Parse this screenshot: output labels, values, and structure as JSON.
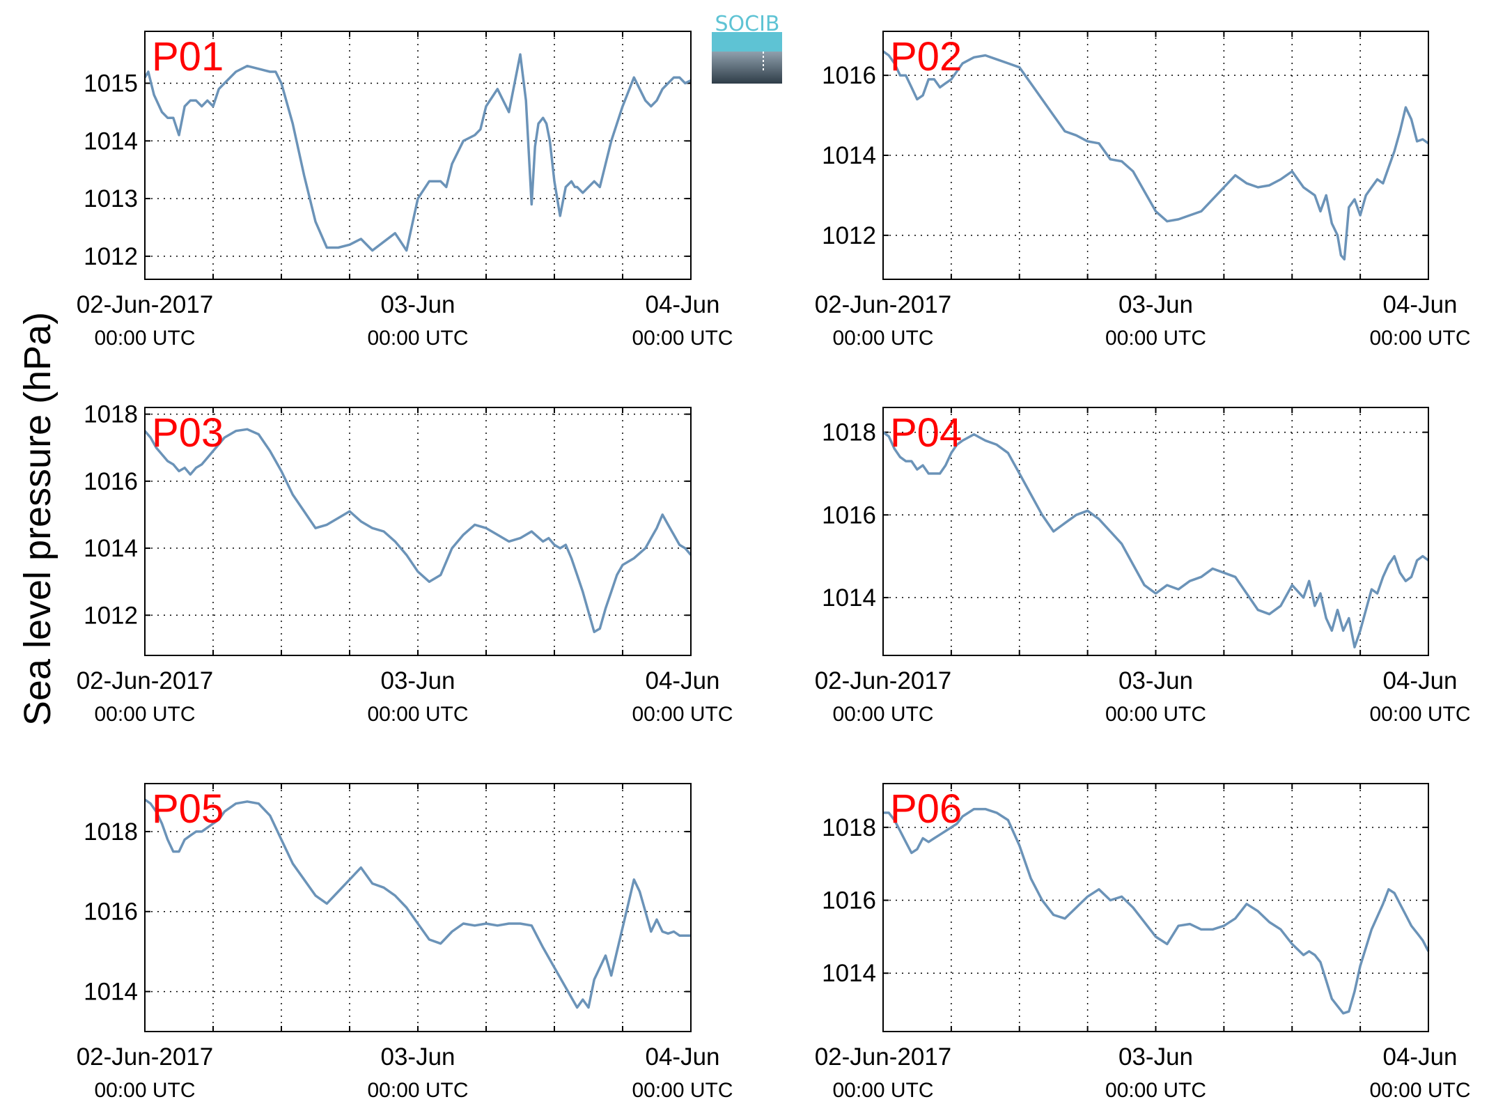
{
  "figure": {
    "ylabel": "Sea level pressure (hPa)",
    "logo_text": "SOCIB",
    "line_color": "#6b93b8",
    "label_color": "#ff0000"
  },
  "chart_data": [
    {
      "type": "line",
      "label": "P01",
      "x_unit": "hours since 02-Jun-2017 00:00 UTC",
      "xlim": [
        0,
        48
      ],
      "ylim": [
        1011.6,
        1015.9
      ],
      "yticks": [
        1012,
        1013,
        1014,
        1015
      ],
      "xticks": [
        {
          "x": 0,
          "line1": "02-Jun-2017",
          "line2": "00:00 UTC"
        },
        {
          "x": 24,
          "line1": "03-Jun",
          "line2": "00:00 UTC"
        },
        {
          "x": 48,
          "line1": "04-Jun",
          "line2": "00:00 UTC"
        }
      ],
      "grid": true,
      "x": [
        0,
        0.3,
        0.8,
        1.5,
        2,
        2.5,
        3,
        3.5,
        4,
        4.5,
        5,
        5.5,
        6,
        6.5,
        7,
        8,
        9,
        10,
        11,
        11.5,
        12,
        13,
        14,
        15,
        16,
        17,
        18,
        19,
        20,
        21,
        22,
        22.5,
        23,
        24,
        25,
        26,
        26.5,
        27,
        28,
        29,
        29.5,
        30,
        31,
        32,
        33,
        33.5,
        34,
        34.3,
        34.6,
        35,
        35.3,
        35.6,
        36,
        36.5,
        37,
        37.5,
        37.8,
        38,
        38.5,
        39,
        39.5,
        40,
        40.5,
        41,
        42,
        43,
        44,
        44.5,
        45,
        45.5,
        46,
        46.5,
        47,
        47.5,
        48
      ],
      "values": [
        1015.1,
        1015.2,
        1014.8,
        1014.5,
        1014.4,
        1014.4,
        1014.1,
        1014.6,
        1014.7,
        1014.7,
        1014.6,
        1014.7,
        1014.6,
        1014.9,
        1015.0,
        1015.2,
        1015.3,
        1015.25,
        1015.2,
        1015.2,
        1015.0,
        1014.3,
        1013.4,
        1012.6,
        1012.15,
        1012.15,
        1012.2,
        1012.3,
        1012.1,
        1012.25,
        1012.4,
        1012.25,
        1012.1,
        1013.0,
        1013.3,
        1013.3,
        1013.2,
        1013.6,
        1014.0,
        1014.1,
        1014.2,
        1014.6,
        1014.9,
        1014.5,
        1015.5,
        1014.7,
        1012.9,
        1013.9,
        1014.3,
        1014.4,
        1014.3,
        1014.0,
        1013.3,
        1012.7,
        1013.2,
        1013.3,
        1013.2,
        1013.2,
        1013.1,
        1013.2,
        1013.3,
        1013.2,
        1013.6,
        1014.0,
        1014.6,
        1015.1,
        1014.7,
        1014.6,
        1014.7,
        1014.9,
        1015.0,
        1015.1,
        1015.1,
        1015.0,
        1015.05
      ]
    },
    {
      "type": "line",
      "label": "P02",
      "x_unit": "hours since 02-Jun-2017 00:00 UTC",
      "xlim": [
        0,
        48
      ],
      "ylim": [
        1010.9,
        1017.1
      ],
      "yticks": [
        1012,
        1014,
        1016
      ],
      "xticks": [
        {
          "x": 0,
          "line1": "02-Jun-2017",
          "line2": "00:00 UTC"
        },
        {
          "x": 24,
          "line1": "03-Jun",
          "line2": "00:00 UTC"
        },
        {
          "x": 48,
          "line1": "04-Jun",
          "line2": "00:00 UTC"
        }
      ],
      "grid": true,
      "x": [
        0,
        0.5,
        1,
        1.5,
        2,
        2.5,
        3,
        3.5,
        4,
        4.5,
        5,
        5.5,
        6,
        6.5,
        7,
        8,
        9,
        10,
        11,
        12,
        13,
        14,
        15,
        16,
        17,
        18,
        19,
        20,
        21,
        22,
        23,
        24,
        25,
        26,
        27,
        28,
        29,
        30,
        31,
        32,
        33,
        34,
        35,
        36,
        37,
        38,
        38.5,
        39,
        39.5,
        40,
        40.3,
        40.6,
        41,
        41.5,
        42,
        42.5,
        43,
        43.5,
        44,
        44.5,
        45,
        45.5,
        46,
        46.5,
        47,
        47.5,
        48
      ],
      "values": [
        1016.6,
        1016.5,
        1016.3,
        1016.0,
        1016.0,
        1015.7,
        1015.4,
        1015.5,
        1015.9,
        1015.9,
        1015.7,
        1015.8,
        1015.9,
        1016.1,
        1016.3,
        1016.45,
        1016.5,
        1016.4,
        1016.3,
        1016.2,
        1015.8,
        1015.4,
        1015.0,
        1014.6,
        1014.5,
        1014.35,
        1014.3,
        1013.9,
        1013.85,
        1013.6,
        1013.1,
        1012.6,
        1012.35,
        1012.4,
        1012.5,
        1012.6,
        1012.9,
        1013.2,
        1013.5,
        1013.3,
        1013.2,
        1013.25,
        1013.4,
        1013.6,
        1013.2,
        1013.0,
        1012.6,
        1013.0,
        1012.3,
        1012.0,
        1011.5,
        1011.4,
        1012.7,
        1012.9,
        1012.5,
        1013.0,
        1013.2,
        1013.4,
        1013.3,
        1013.7,
        1014.1,
        1014.6,
        1015.2,
        1014.9,
        1014.35,
        1014.4,
        1014.3
      ]
    },
    {
      "type": "line",
      "label": "P03",
      "x_unit": "hours since 02-Jun-2017 00:00 UTC",
      "xlim": [
        0,
        48
      ],
      "ylim": [
        1010.8,
        1018.2
      ],
      "yticks": [
        1012,
        1014,
        1016,
        1018
      ],
      "xticks": [
        {
          "x": 0,
          "line1": "02-Jun-2017",
          "line2": "00:00 UTC"
        },
        {
          "x": 24,
          "line1": "03-Jun",
          "line2": "00:00 UTC"
        },
        {
          "x": 48,
          "line1": "04-Jun",
          "line2": "00:00 UTC"
        }
      ],
      "grid": true,
      "x": [
        0,
        0.5,
        1,
        1.5,
        2,
        2.5,
        3,
        3.5,
        4,
        4.5,
        5,
        5.5,
        6,
        6.5,
        7,
        8,
        9,
        10,
        11,
        12,
        13,
        14,
        15,
        16,
        17,
        18,
        19,
        20,
        21,
        22,
        23,
        24,
        25,
        26,
        27,
        28,
        29,
        30,
        31,
        32,
        33,
        34,
        35,
        35.5,
        36,
        36.5,
        37,
        37.5,
        38,
        38.5,
        39,
        39.5,
        40,
        40.5,
        41,
        41.5,
        42,
        43,
        44,
        44.5,
        45,
        45.5,
        46,
        46.5,
        47,
        47.5,
        48
      ],
      "values": [
        1017.5,
        1017.3,
        1017.0,
        1016.8,
        1016.6,
        1016.5,
        1016.3,
        1016.4,
        1016.2,
        1016.4,
        1016.5,
        1016.7,
        1016.9,
        1017.1,
        1017.3,
        1017.5,
        1017.55,
        1017.4,
        1016.9,
        1016.3,
        1015.6,
        1015.1,
        1014.6,
        1014.7,
        1014.9,
        1015.1,
        1014.8,
        1014.6,
        1014.5,
        1014.2,
        1013.8,
        1013.3,
        1013.0,
        1013.2,
        1014.0,
        1014.4,
        1014.7,
        1014.6,
        1014.4,
        1014.2,
        1014.3,
        1014.5,
        1014.2,
        1014.3,
        1014.1,
        1014.0,
        1014.1,
        1013.7,
        1013.2,
        1012.7,
        1012.1,
        1011.5,
        1011.6,
        1012.2,
        1012.7,
        1013.2,
        1013.5,
        1013.7,
        1014.0,
        1014.3,
        1014.6,
        1015.0,
        1014.7,
        1014.4,
        1014.1,
        1014.0,
        1013.8
      ]
    },
    {
      "type": "line",
      "label": "P04",
      "x_unit": "hours since 02-Jun-2017 00:00 UTC",
      "xlim": [
        0,
        48
      ],
      "ylim": [
        1012.6,
        1018.6
      ],
      "yticks": [
        1014,
        1016,
        1018
      ],
      "xticks": [
        {
          "x": 0,
          "line1": "02-Jun-2017",
          "line2": "00:00 UTC"
        },
        {
          "x": 24,
          "line1": "03-Jun",
          "line2": "00:00 UTC"
        },
        {
          "x": 48,
          "line1": "04-Jun",
          "line2": "00:00 UTC"
        }
      ],
      "grid": true,
      "x": [
        0,
        0.5,
        1,
        1.5,
        2,
        2.5,
        3,
        3.5,
        4,
        4.5,
        5,
        5.5,
        6,
        6.5,
        7,
        8,
        9,
        10,
        11,
        12,
        13,
        14,
        15,
        16,
        17,
        18,
        19,
        20,
        21,
        22,
        23,
        24,
        25,
        26,
        27,
        28,
        29,
        30,
        31,
        32,
        33,
        34,
        35,
        36,
        37,
        37.5,
        38,
        38.5,
        39,
        39.5,
        40,
        40.5,
        41,
        41.5,
        42,
        42.3,
        42.6,
        43,
        43.5,
        44,
        44.5,
        45,
        45.5,
        46,
        46.5,
        47,
        47.5,
        48
      ],
      "values": [
        1018.0,
        1017.9,
        1017.6,
        1017.4,
        1017.3,
        1017.3,
        1017.1,
        1017.2,
        1017.0,
        1017.0,
        1017.0,
        1017.2,
        1017.5,
        1017.7,
        1017.8,
        1017.95,
        1017.8,
        1017.7,
        1017.5,
        1017.0,
        1016.5,
        1016.0,
        1015.6,
        1015.8,
        1016.0,
        1016.1,
        1015.9,
        1015.6,
        1015.3,
        1014.8,
        1014.3,
        1014.1,
        1014.3,
        1014.2,
        1014.4,
        1014.5,
        1014.7,
        1014.6,
        1014.5,
        1014.1,
        1013.7,
        1013.6,
        1013.8,
        1014.3,
        1014.0,
        1014.4,
        1013.8,
        1014.1,
        1013.5,
        1013.2,
        1013.7,
        1013.2,
        1013.5,
        1012.8,
        1013.2,
        1013.5,
        1013.8,
        1014.2,
        1014.1,
        1014.5,
        1014.8,
        1015.0,
        1014.6,
        1014.4,
        1014.5,
        1014.9,
        1015.0,
        1014.9
      ]
    },
    {
      "type": "line",
      "label": "P05",
      "x_unit": "hours since 02-Jun-2017 00:00 UTC",
      "xlim": [
        0,
        48
      ],
      "ylim": [
        1013.0,
        1019.2
      ],
      "yticks": [
        1014,
        1016,
        1018
      ],
      "xticks": [
        {
          "x": 0,
          "line1": "02-Jun-2017",
          "line2": "00:00 UTC"
        },
        {
          "x": 24,
          "line1": "03-Jun",
          "line2": "00:00 UTC"
        },
        {
          "x": 48,
          "line1": "04-Jun",
          "line2": "00:00 UTC"
        }
      ],
      "grid": true,
      "x": [
        0,
        0.5,
        1,
        1.5,
        2,
        2.5,
        3,
        3.5,
        4,
        4.5,
        5,
        5.5,
        6,
        6.5,
        7,
        8,
        9,
        10,
        11,
        12,
        13,
        14,
        15,
        16,
        17,
        18,
        19,
        20,
        21,
        22,
        23,
        24,
        25,
        26,
        27,
        28,
        29,
        30,
        31,
        32,
        33,
        34,
        35,
        36,
        37,
        38,
        38.5,
        39,
        39.5,
        40,
        40.5,
        41,
        41.5,
        42,
        42.5,
        43,
        43.5,
        44,
        44.5,
        45,
        45.5,
        46,
        46.5,
        47,
        47.5,
        48
      ],
      "values": [
        1018.8,
        1018.7,
        1018.5,
        1018.2,
        1017.8,
        1017.5,
        1017.5,
        1017.8,
        1017.9,
        1018.0,
        1018.0,
        1018.1,
        1018.2,
        1018.3,
        1018.5,
        1018.7,
        1018.75,
        1018.7,
        1018.4,
        1017.8,
        1017.2,
        1016.8,
        1016.4,
        1016.2,
        1016.5,
        1016.8,
        1017.1,
        1016.7,
        1016.6,
        1016.4,
        1016.1,
        1015.7,
        1015.3,
        1015.2,
        1015.5,
        1015.7,
        1015.65,
        1015.7,
        1015.65,
        1015.7,
        1015.7,
        1015.65,
        1015.1,
        1014.6,
        1014.1,
        1013.6,
        1013.8,
        1013.6,
        1014.3,
        1014.6,
        1014.9,
        1014.4,
        1015.0,
        1015.6,
        1016.2,
        1016.8,
        1016.5,
        1016.0,
        1015.5,
        1015.8,
        1015.5,
        1015.45,
        1015.5,
        1015.4,
        1015.4,
        1015.4
      ]
    },
    {
      "type": "line",
      "label": "P06",
      "x_unit": "hours since 02-Jun-2017 00:00 UTC",
      "xlim": [
        0,
        48
      ],
      "ylim": [
        1012.4,
        1019.2
      ],
      "yticks": [
        1014,
        1016,
        1018
      ],
      "xticks": [
        {
          "x": 0,
          "line1": "02-Jun-2017",
          "line2": "00:00 UTC"
        },
        {
          "x": 24,
          "line1": "03-Jun",
          "line2": "00:00 UTC"
        },
        {
          "x": 48,
          "line1": "04-Jun",
          "line2": "00:00 UTC"
        }
      ],
      "grid": true,
      "x": [
        0,
        0.5,
        1,
        1.5,
        2,
        2.5,
        3,
        3.5,
        4,
        4.5,
        5,
        5.5,
        6,
        6.5,
        7,
        8,
        9,
        10,
        11,
        12,
        13,
        14,
        15,
        16,
        17,
        18,
        19,
        20,
        21,
        22,
        23,
        24,
        25,
        26,
        27,
        28,
        29,
        30,
        31,
        32,
        33,
        34,
        35,
        36,
        37,
        37.5,
        38,
        38.5,
        39,
        39.5,
        40,
        40.5,
        41,
        41.5,
        42,
        43,
        44,
        44.5,
        45,
        45.5,
        46,
        46.5,
        47,
        47.5,
        48
      ],
      "values": [
        1018.4,
        1018.4,
        1018.2,
        1017.9,
        1017.6,
        1017.3,
        1017.4,
        1017.7,
        1017.6,
        1017.7,
        1017.8,
        1017.9,
        1018.0,
        1018.1,
        1018.3,
        1018.5,
        1018.5,
        1018.4,
        1018.2,
        1017.5,
        1016.6,
        1016.0,
        1015.6,
        1015.5,
        1015.8,
        1016.1,
        1016.3,
        1016.0,
        1016.1,
        1015.8,
        1015.4,
        1015.0,
        1014.8,
        1015.3,
        1015.35,
        1015.2,
        1015.2,
        1015.3,
        1015.5,
        1015.9,
        1015.7,
        1015.4,
        1015.2,
        1014.8,
        1014.5,
        1014.6,
        1014.5,
        1014.3,
        1013.8,
        1013.3,
        1013.1,
        1012.9,
        1012.95,
        1013.5,
        1014.2,
        1015.2,
        1015.9,
        1016.3,
        1016.2,
        1015.9,
        1015.6,
        1015.3,
        1015.1,
        1014.9,
        1014.6
      ]
    }
  ]
}
